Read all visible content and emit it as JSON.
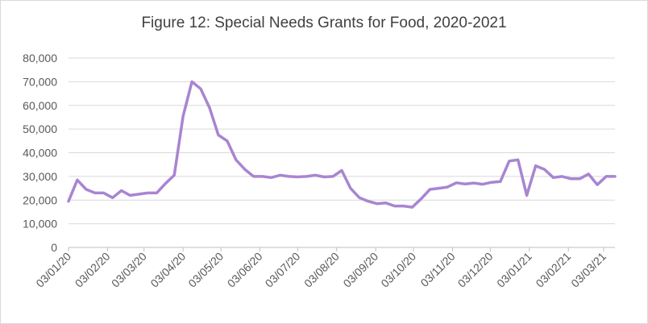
{
  "chart_data": {
    "type": "line",
    "title": "Figure 12: Special Needs Grants for Food, 2020-2021",
    "xlabel": "",
    "ylabel": "",
    "ylim": [
      0,
      80000
    ],
    "yticks": [
      "0",
      "10,000",
      "20,000",
      "30,000",
      "40,000",
      "50,000",
      "60,000",
      "70,000",
      "80,000"
    ],
    "xticks": [
      "03/01/20",
      "03/02/20",
      "03/03/20",
      "03/04/20",
      "03/05/20",
      "03/06/20",
      "03/07/20",
      "03/08/20",
      "03/09/20",
      "03/10/20",
      "03/11/20",
      "03/12/20",
      "03/01/21",
      "03/02/21",
      "03/03/21"
    ],
    "grid": true,
    "legend": "none",
    "line_color": "#a885d1",
    "series": [
      {
        "x": [
          "2020-01-03",
          "2020-01-10",
          "2020-01-17",
          "2020-01-24",
          "2020-01-31",
          "2020-02-07",
          "2020-02-14",
          "2020-02-21",
          "2020-02-28",
          "2020-03-06",
          "2020-03-13",
          "2020-03-20",
          "2020-03-27",
          "2020-04-03",
          "2020-04-10",
          "2020-04-17",
          "2020-04-24",
          "2020-05-01",
          "2020-05-08",
          "2020-05-15",
          "2020-05-22",
          "2020-05-29",
          "2020-06-05",
          "2020-06-12",
          "2020-06-19",
          "2020-06-26",
          "2020-07-03",
          "2020-07-10",
          "2020-07-17",
          "2020-07-24",
          "2020-07-31",
          "2020-08-07",
          "2020-08-14",
          "2020-08-21",
          "2020-08-28",
          "2020-09-04",
          "2020-09-11",
          "2020-09-18",
          "2020-09-25",
          "2020-10-02",
          "2020-10-09",
          "2020-10-16",
          "2020-10-23",
          "2020-10-30",
          "2020-11-06",
          "2020-11-13",
          "2020-11-20",
          "2020-11-27",
          "2020-12-04",
          "2020-12-11",
          "2020-12-18",
          "2020-12-25",
          "2021-01-01",
          "2021-01-08",
          "2021-01-15",
          "2021-01-22",
          "2021-01-29",
          "2021-02-05",
          "2021-02-12",
          "2021-02-19",
          "2021-02-26",
          "2021-03-05",
          "2021-03-12"
        ],
        "values": [
          19500,
          28500,
          24500,
          23000,
          23000,
          21000,
          24000,
          22000,
          22500,
          23000,
          23000,
          27000,
          30500,
          55500,
          70000,
          67000,
          59000,
          47500,
          45000,
          37000,
          33000,
          30000,
          30000,
          29500,
          30500,
          30000,
          29800,
          30000,
          30500,
          29800,
          30000,
          32500,
          25000,
          21000,
          19500,
          18500,
          18800,
          17500,
          17500,
          17000,
          20500,
          24500,
          25000,
          25500,
          27300,
          26800,
          27200,
          26700,
          27500,
          27800,
          36500,
          37000,
          22000,
          34500,
          33000,
          29500,
          30000,
          29000,
          29000,
          31000,
          26500,
          30000,
          30000
        ]
      }
    ]
  }
}
